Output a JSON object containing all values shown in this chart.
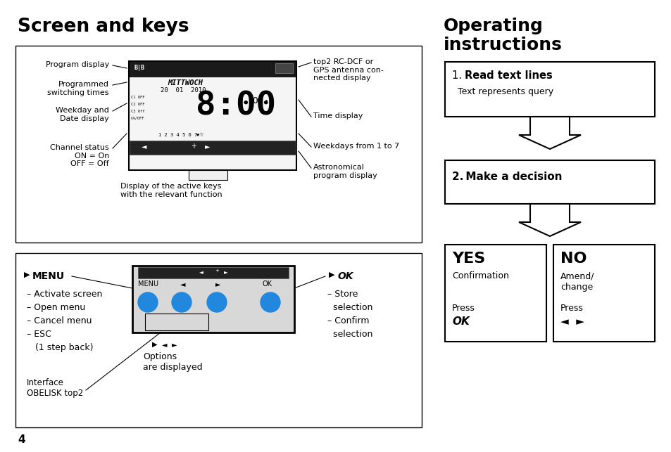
{
  "title_left": "Screen and keys",
  "title_right": "Operating\ninstructions",
  "bg_color": "#ffffff",
  "text_color": "#000000",
  "blue_button_color": "#2288dd",
  "page_number": "4",
  "right_box1_num": "1. ",
  "right_box1_bold": "Read text lines",
  "right_box1_normal": "Text represents query",
  "right_box2": "2. Make a decision",
  "right_yes_title": "YES",
  "right_yes_sub": "Confirmation",
  "right_yes_press": "Press",
  "right_yes_key": "OK",
  "right_no_title": "NO",
  "right_no_sub1": "Amend/",
  "right_no_sub2": "change",
  "right_no_press": "Press",
  "right_no_key": "◄  ►",
  "menu_items": [
    "– Activate screen",
    "– Open menu",
    "– Cancel menu",
    "– ESC",
    "   (1 step back)"
  ],
  "interface_label": "Interface\nOBELISK top2",
  "ok_items": [
    "– Store",
    "  selection",
    "– Confirm",
    "  selection"
  ],
  "options_label": "Options\nare displayed",
  "labels_left": [
    "Program display",
    "Programmed\nswitching times",
    "Weekday and\nDate display",
    "Channel status\nON = On\nOFF = Off"
  ],
  "labels_right": [
    "top2 RC-DCF or\nGPS antenna con-\nnected display",
    "Time display",
    "Weekdays from 1 to 7",
    "Astronomical\nprogram display"
  ],
  "bottom_label": "Display of the active keys\nwith the relevant function"
}
